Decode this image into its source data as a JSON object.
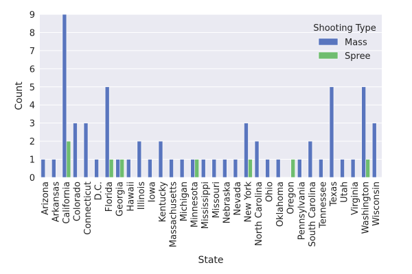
{
  "chart_data": {
    "type": "bar",
    "xlabel": "State",
    "ylabel": "Count",
    "ylim": [
      0,
      9
    ],
    "yticks": [
      0,
      1,
      2,
      3,
      4,
      5,
      6,
      7,
      8,
      9
    ],
    "grid": true,
    "legend": {
      "title": "Shooting Type",
      "placement": "top-right"
    },
    "categories": [
      "Arizona",
      "Arkansas",
      "California",
      "Colorado",
      "Connecticut",
      "D.C.",
      "Florida",
      "Georgia",
      "Hawaii",
      "Illinois",
      "Iowa",
      "Kentucky",
      "Massachusetts",
      "Michigan",
      "Minnesota",
      "Mississippi",
      "Missouri",
      "Nebraska",
      "Nevada",
      "New York",
      "North Carolina",
      "Ohio",
      "Oklahoma",
      "Oregon",
      "Pennsylvania",
      "South Carolina",
      "Tennessee",
      "Texas",
      "Utah",
      "Virginia",
      "Washington",
      "Wisconsin"
    ],
    "series": [
      {
        "name": "Mass",
        "color": "#5975be",
        "values": [
          1,
          1,
          9,
          3,
          3,
          1,
          5,
          1,
          1,
          2,
          1,
          2,
          1,
          1,
          1,
          1,
          1,
          1,
          1,
          3,
          2,
          1,
          1,
          0,
          1,
          2,
          1,
          5,
          1,
          1,
          5,
          3
        ]
      },
      {
        "name": "Spree",
        "color": "#6fbd6f",
        "values": [
          0,
          0,
          2,
          0,
          0,
          0,
          1,
          1,
          0,
          0,
          0,
          0,
          0,
          0,
          1,
          0,
          0,
          0,
          0,
          1,
          0,
          0,
          0,
          1,
          0,
          0,
          0,
          0,
          0,
          0,
          1,
          0
        ]
      }
    ]
  },
  "colors": {
    "plot_background": "#eaeaf2",
    "gridline": "#ffffff"
  }
}
